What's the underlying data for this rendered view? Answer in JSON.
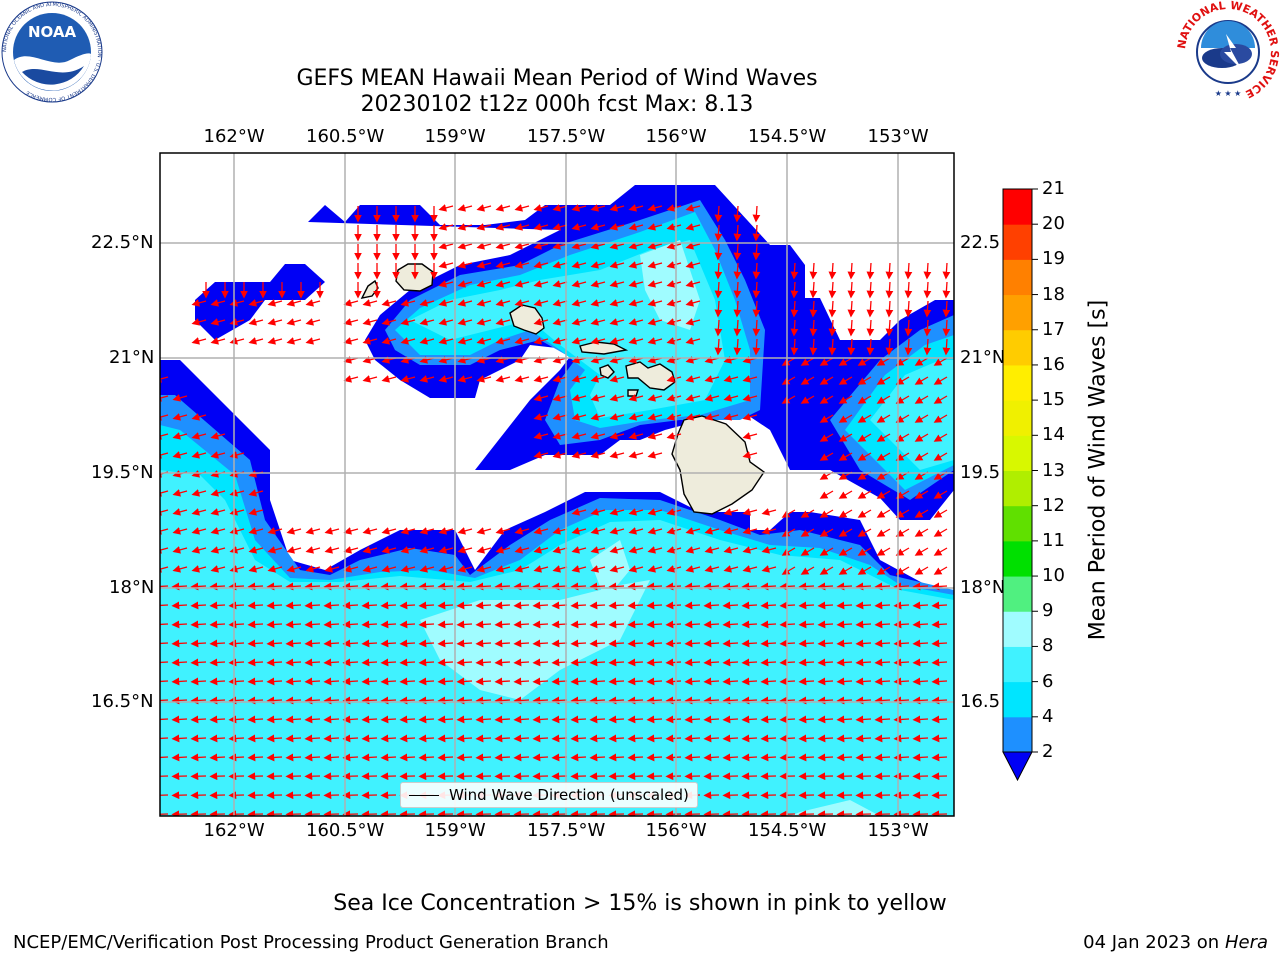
{
  "title": {
    "line1": "GEFS MEAN Hawaii Mean Period of Wind Waves",
    "line2": "20230102 t12z 000h fcst   Max: 8.13"
  },
  "map": {
    "lon_ticks": [
      "162°W",
      "160.5°W",
      "159°W",
      "157.5°W",
      "156°W",
      "154.5°W",
      "153°W"
    ],
    "lat_ticks_left": [
      "22.5°N",
      "21°N",
      "19.5°N",
      "18°N",
      "16.5°N"
    ],
    "lat_ticks_right": [
      "22.5",
      "21°N",
      "19.5",
      "18°N",
      "16.5"
    ],
    "legend_label": "Wind Wave Direction (unscaled)",
    "colors": {
      "land": "#eeecdc",
      "arrow": "#ff0000",
      "gridline": "#b0b0b0"
    },
    "field_layers": [
      {
        "range": "2-4",
        "color": "#1e90ff"
      },
      {
        "range": "4-6",
        "color": "#00e5ff"
      },
      {
        "range": "6-8",
        "color": "#40f2ff"
      },
      {
        "range": "8-9",
        "color": "#a0fcff"
      }
    ],
    "below_range_color": "#0000f5"
  },
  "colorbar": {
    "label": "Mean Period of Wind Waves [s]",
    "ticks": [
      "2",
      "4",
      "6",
      "8",
      "9",
      "10",
      "11",
      "12",
      "13",
      "14",
      "15",
      "16",
      "17",
      "18",
      "19",
      "20",
      "21"
    ],
    "colors": [
      "#1e90ff",
      "#00e5ff",
      "#40f2ff",
      "#a0fcff",
      "#50f080",
      "#00e000",
      "#60e000",
      "#b0ee00",
      "#d8f800",
      "#f0f000",
      "#ffee00",
      "#ffcc00",
      "#ffa000",
      "#ff8000",
      "#ff4000",
      "#ff0000"
    ],
    "under_color": "#0000f5"
  },
  "footer": {
    "sea_ice_note": "Sea Ice Concentration > 15% is shown in pink to yellow",
    "left": "NCEP/EMC/Verification Post Processing Product Generation Branch",
    "date": "04 Jan 2023 on",
    "system": "Hera"
  },
  "logos": {
    "noaa": "NOAA",
    "noaa_ring": "NATIONAL OCEANIC AND ATMOSPHERIC ADMINISTRATION · U.S. DEPARTMENT OF COMMERCE",
    "nws_ring": "NATIONAL WEATHER SERVICE"
  }
}
